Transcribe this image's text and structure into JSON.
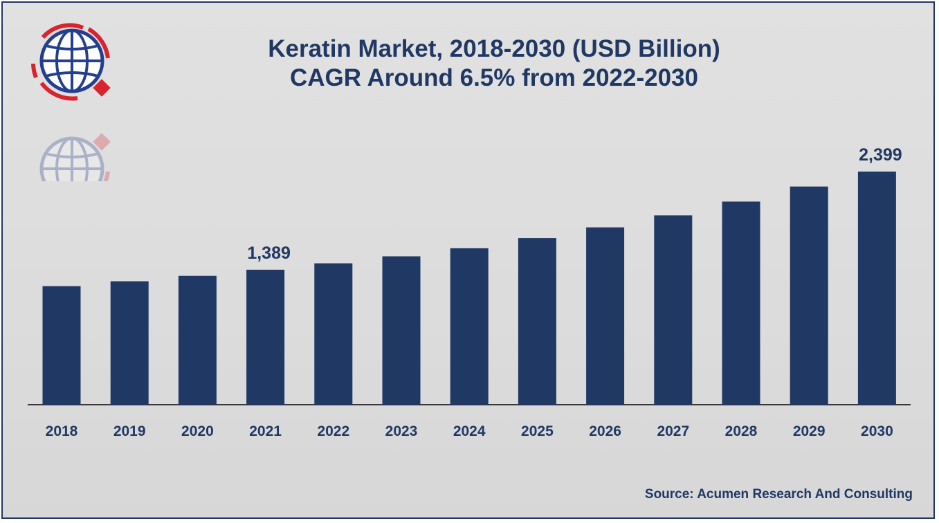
{
  "title_line1": "Keratin Market, 2018-2030 (USD Billion)",
  "title_line2": "CAGR Around 6.5% from 2022-2030",
  "source": "Source: Acumen Research And Consulting",
  "logo_icon": "globe-icon",
  "colors": {
    "bar": "#203864",
    "text": "#1f3864",
    "axis": "#3a3a3a",
    "logo_red": "#d9232e",
    "logo_blue": "#243f8f"
  },
  "chart_data": {
    "type": "bar",
    "categories": [
      "2018",
      "2019",
      "2020",
      "2021",
      "2022",
      "2023",
      "2024",
      "2025",
      "2026",
      "2027",
      "2028",
      "2029",
      "2030"
    ],
    "values": [
      1220,
      1270,
      1326,
      1389,
      1455,
      1527,
      1610,
      1715,
      1825,
      1948,
      2090,
      2245,
      2399
    ],
    "data_labels": [
      {
        "category": "2021",
        "text": "1,389"
      },
      {
        "category": "2030",
        "text": "2,399"
      }
    ],
    "ylim": [
      0,
      2399
    ],
    "grid": false,
    "legend": "none",
    "title": "Keratin Market, 2018-2030 (USD Billion)",
    "subtitle": "CAGR Around 6.5% from 2022-2030",
    "xlabel": "",
    "ylabel": ""
  }
}
